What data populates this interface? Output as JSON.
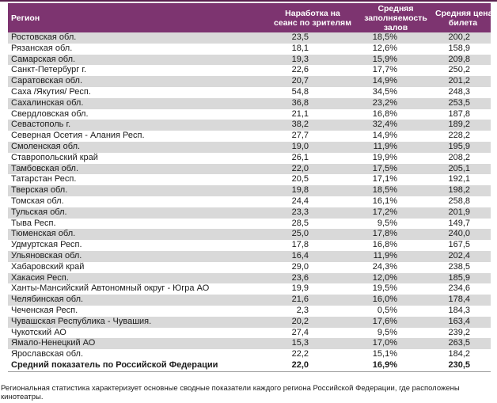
{
  "colors": {
    "top_rule": "#5A214E",
    "header_bg": "#7D3470",
    "header_text": "#FFFFFF",
    "row_alt_bg": "#D9D9D9",
    "body_text": "#1B1B1B"
  },
  "table": {
    "columns": [
      {
        "label": "Регион",
        "lines": [
          "Регион"
        ]
      },
      {
        "label": "Наработка на сеанс по зрителям",
        "lines": [
          "Наработка на",
          "сеанс по зрителям"
        ]
      },
      {
        "label": "Средняя заполняемость залов",
        "lines": [
          "Средняя",
          "заполняемость",
          "залов"
        ]
      },
      {
        "label": "Средняя цена билета",
        "lines": [
          "Средняя цена",
          "билета"
        ]
      }
    ],
    "rows": [
      [
        "Ростовская обл.",
        "23,5",
        "18,5%",
        "200,2"
      ],
      [
        "Рязанская обл.",
        "18,1",
        "12,6%",
        "158,9"
      ],
      [
        "Самарская обл.",
        "19,3",
        "15,9%",
        "209,8"
      ],
      [
        "Санкт-Петербург г.",
        "22,6",
        "17,7%",
        "250,2"
      ],
      [
        "Саратовская обл.",
        "20,7",
        "14,9%",
        "201,2"
      ],
      [
        "Саха /Якутия/ Респ.",
        "54,8",
        "34,5%",
        "248,3"
      ],
      [
        "Сахалинская обл.",
        "36,8",
        "23,2%",
        "253,5"
      ],
      [
        "Свердловская обл.",
        "21,1",
        "16,8%",
        "187,8"
      ],
      [
        "Севастополь г.",
        "38,2",
        "32,4%",
        "189,2"
      ],
      [
        "Северная Осетия - Алания Респ.",
        "27,7",
        "14,9%",
        "228,2"
      ],
      [
        "Смоленская обл.",
        "19,0",
        "11,9%",
        "195,9"
      ],
      [
        "Ставропольский край",
        "26,1",
        "19,9%",
        "208,2"
      ],
      [
        "Тамбовская обл.",
        "22,0",
        "17,5%",
        "205,1"
      ],
      [
        "Татарстан Респ.",
        "20,5",
        "17,1%",
        "192,1"
      ],
      [
        "Тверская обл.",
        "19,8",
        "18,5%",
        "198,2"
      ],
      [
        "Томская обл.",
        "24,4",
        "16,1%",
        "258,8"
      ],
      [
        "Тульская обл.",
        "23,3",
        "17,2%",
        "201,9"
      ],
      [
        "Тыва Респ.",
        "28,5",
        "9,5%",
        "149,7"
      ],
      [
        "Тюменская обл.",
        "25,0",
        "17,8%",
        "240,0"
      ],
      [
        "Удмуртская Респ.",
        "17,8",
        "16,8%",
        "167,5"
      ],
      [
        "Ульяновская обл.",
        "16,4",
        "11,9%",
        "202,4"
      ],
      [
        "Хабаровский край",
        "29,0",
        "24,3%",
        "238,5"
      ],
      [
        "Хакасия Респ.",
        "23,6",
        "12,0%",
        "185,9"
      ],
      [
        "Ханты-Мансийский Автономный округ - Югра АО",
        "19,9",
        "19,5%",
        "234,6"
      ],
      [
        "Челябинская обл.",
        "21,6",
        "16,0%",
        "178,4"
      ],
      [
        "Чеченская Респ.",
        "2,3",
        "0,5%",
        "184,3"
      ],
      [
        "Чувашская Республика - Чувашия.",
        "20,2",
        "17,6%",
        "163,4"
      ],
      [
        "Чукотский АО",
        "27,4",
        "9,5%",
        "239,2"
      ],
      [
        "Ямало-Ненецкий АО",
        "15,3",
        "17,0%",
        "263,5"
      ],
      [
        "Ярославская обл.",
        "22,2",
        "15,1%",
        "184,2"
      ]
    ],
    "summary_row": [
      "Средний показатель по Российской Федерации",
      "22,0",
      "16,9%",
      "230,5"
    ]
  },
  "footnote": {
    "text": "Региональная статистика характеризует основные сводные показатели каждого региона Российской Федерации, где расположены кинотеатры."
  }
}
